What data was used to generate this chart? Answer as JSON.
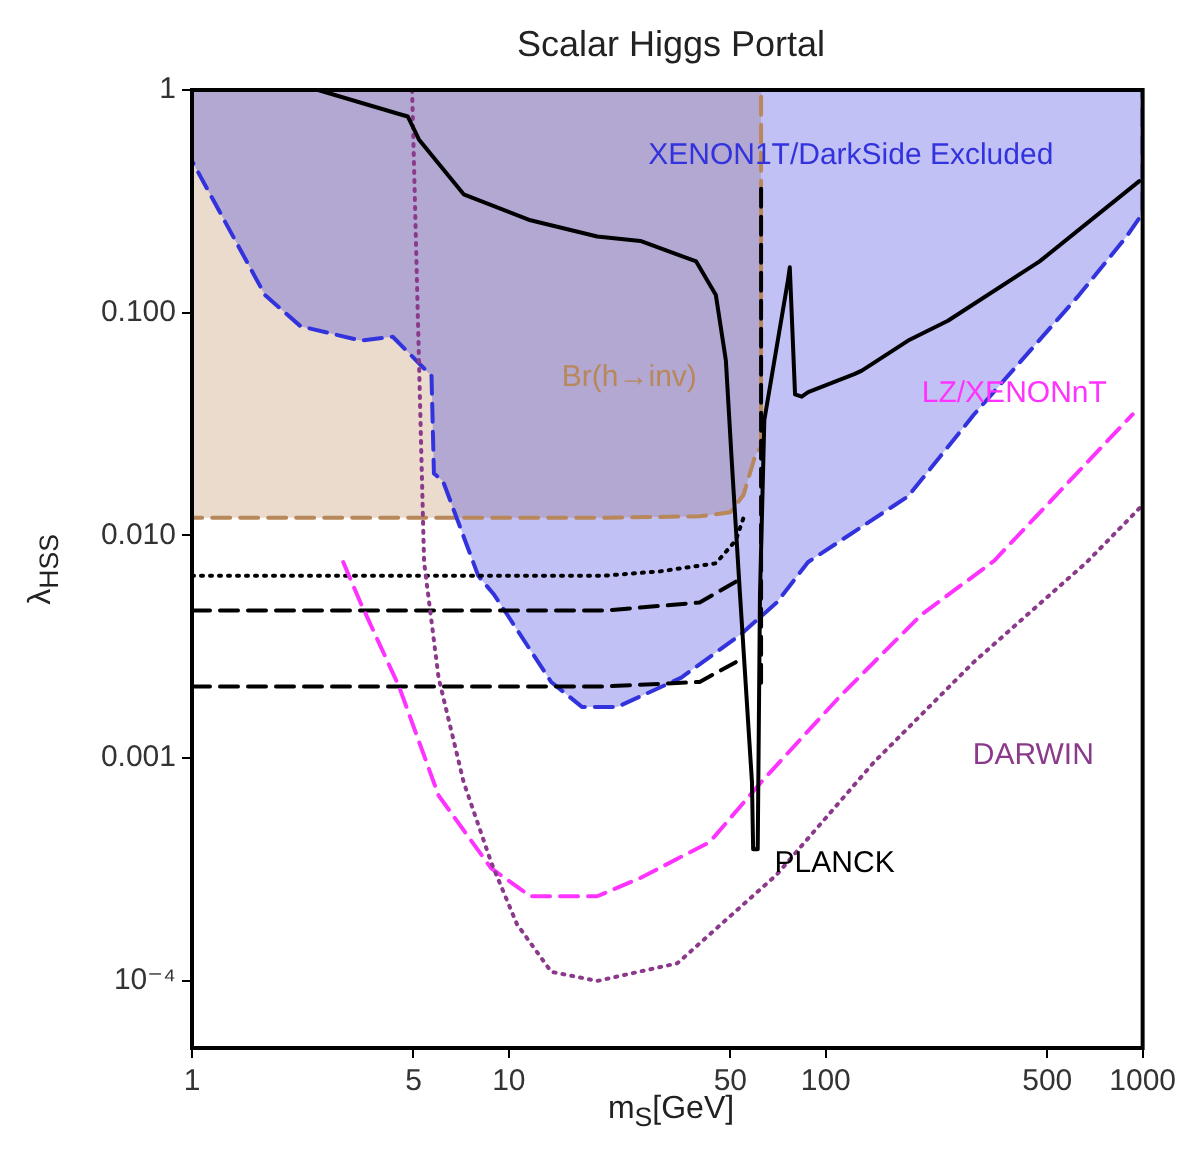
{
  "chart_data": {
    "type": "line",
    "title": "Scalar Higgs Portal",
    "xlabel": "m$_{S}$[GeV]",
    "ylabel": "λ$_{HSS}$",
    "log": "xy",
    "marker": "none",
    "xlim": [
      1,
      1000
    ],
    "xticks": [
      1,
      5,
      10,
      50,
      100,
      500,
      1000
    ],
    "ylim": [
      5e-05,
      1
    ],
    "yticks": [
      {
        "value": 0.0001,
        "label": "10⁻⁴"
      },
      0.001,
      {
        "value": 0.01,
        "label": "0.010"
      },
      {
        "value": 0.1,
        "label": "0.100"
      },
      1
    ],
    "series": [
      {
        "name": "Br(h→inv)",
        "type": "area",
        "color": "#b8875a",
        "line_style": "dashed",
        "x": [
          1,
          1,
          5,
          20,
          40,
          50,
          55,
          60,
          62.5,
          62.5
        ],
        "values": [
          1,
          0.012,
          0.012,
          0.012,
          0.0122,
          0.0127,
          0.0152,
          0.023,
          0.025,
          1
        ]
      },
      {
        "name": "XENON1T/DarkSide Excluded",
        "type": "area",
        "color": "#3333dd",
        "line_style": "dashed",
        "x": [
          1,
          1,
          1.7,
          2.2,
          3.4,
          4.3,
          5.7,
          5.8,
          6.2,
          8,
          9,
          13.6,
          17,
          22,
          35,
          54,
          70,
          88,
          182,
          294,
          630,
          890,
          1000,
          1000
        ],
        "values": [
          1,
          0.48,
          0.12,
          0.087,
          0.075,
          0.078,
          0.052,
          0.019,
          0.0175,
          0.0066,
          0.0054,
          0.0022,
          0.0017,
          0.0017,
          0.0023,
          0.0036,
          0.005,
          0.0076,
          0.015,
          0.035,
          0.12,
          0.22,
          0.28,
          1
        ]
      },
      {
        "type": "line",
        "color": "#000000",
        "line_style": "dotted",
        "x": [
          1,
          20,
          30,
          45,
          52,
          55
        ],
        "values": [
          0.0066,
          0.0066,
          0.0069,
          0.0075,
          0.0095,
          0.012
        ]
      },
      {
        "type": "line",
        "color": "#000000",
        "line_style": "dashed",
        "x": [
          1,
          20,
          40,
          52
        ],
        "values": [
          0.0046,
          0.0046,
          0.005,
          0.0062
        ]
      },
      {
        "type": "line",
        "color": "#000000",
        "line_style": "dashed",
        "x": [
          1,
          20,
          40,
          52
        ],
        "values": [
          0.0021,
          0.0021,
          0.0022,
          0.0027
        ]
      },
      {
        "type": "line",
        "color": "#000000",
        "line_style": "dashed",
        "x": [
          62.5,
          62.5
        ],
        "values": [
          0.36,
          0.002
        ]
      },
      {
        "name": "LZ/XENONnT",
        "type": "line",
        "color": "#ff33ff",
        "line_style": "dashed",
        "x": [
          3,
          3.4,
          4.5,
          6,
          8.8,
          11.7,
          19,
          26,
          43,
          63,
          111,
          200,
          340,
          930
        ],
        "values": [
          0.0076,
          0.005,
          0.0021,
          0.00068,
          0.00032,
          0.00024,
          0.00024,
          0.00029,
          0.00042,
          0.00079,
          0.0019,
          0.0044,
          0.0077,
          0.035
        ]
      },
      {
        "name": "DARWIN",
        "type": "line",
        "color": "#8b3a8b",
        "line_style": "dotted",
        "x": [
          4.95,
          5.4,
          6,
          7.2,
          8.8,
          10.6,
          13.6,
          19,
          34,
          70,
          142,
          293,
          667,
          1000
        ],
        "values": [
          1,
          0.0076,
          0.0023,
          0.00078,
          0.00034,
          0.00018,
          0.00011,
          0.0001,
          0.00012,
          0.0003,
          0.00096,
          0.0027,
          0.0076,
          0.0137
        ]
      },
      {
        "name": "PLANCK",
        "type": "line",
        "color": "#000000",
        "line_style": "solid",
        "x": [
          2.5,
          4.5,
          4.8,
          5.2,
          7.2,
          11.7,
          19,
          26,
          39,
          45,
          48.4,
          50.5,
          53.6,
          58.5,
          59,
          61,
          62,
          64,
          76,
          77,
          80,
          84,
          88,
          123,
          130,
          182,
          243,
          473,
          976
        ],
        "values": [
          1,
          0.78,
          0.76,
          0.6,
          0.34,
          0.26,
          0.22,
          0.21,
          0.17,
          0.12,
          0.061,
          0.0216,
          0.0055,
          0.00078,
          0.00039,
          0.00039,
          0.0054,
          0.033,
          0.14,
          0.16,
          0.043,
          0.042,
          0.044,
          0.053,
          0.055,
          0.075,
          0.092,
          0.17,
          0.39
        ]
      }
    ]
  }
}
